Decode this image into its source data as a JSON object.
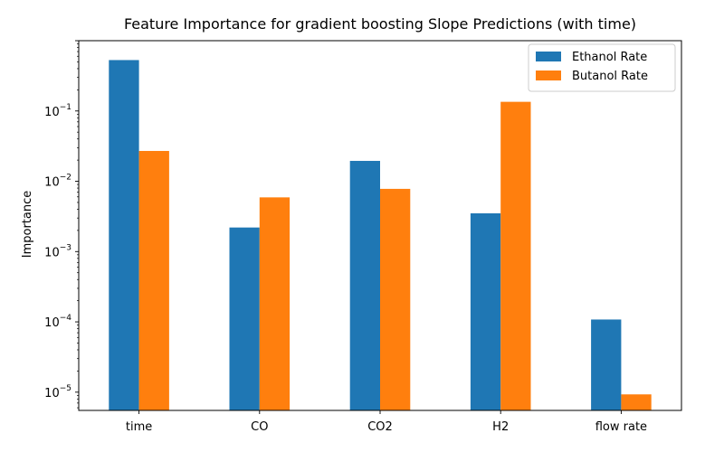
{
  "chart_data": {
    "type": "bar",
    "title": "Feature Importance for gradient boosting Slope Predictions (with time)",
    "xlabel": "",
    "ylabel": "Importance",
    "yscale": "log",
    "ylim": [
      5.5e-06,
      1.0
    ],
    "y_ticks": [
      {
        "value": 1e-05,
        "base": "10",
        "exp": "−5"
      },
      {
        "value": 0.0001,
        "base": "10",
        "exp": "−4"
      },
      {
        "value": 0.001,
        "base": "10",
        "exp": "−3"
      },
      {
        "value": 0.01,
        "base": "10",
        "exp": "−2"
      },
      {
        "value": 0.1,
        "base": "10",
        "exp": "−1"
      }
    ],
    "categories": [
      "time",
      "CO",
      "CO2",
      "H2",
      "flow rate"
    ],
    "series": [
      {
        "name": "Ethanol Rate",
        "color": "#1f77b4",
        "values": [
          0.53,
          0.0022,
          0.0195,
          0.0035,
          0.000108
        ]
      },
      {
        "name": "Butanol Rate",
        "color": "#ff7f0e",
        "values": [
          0.027,
          0.0059,
          0.0078,
          0.135,
          9.3e-06
        ]
      }
    ],
    "grid": false,
    "legend_position": "top-right"
  }
}
